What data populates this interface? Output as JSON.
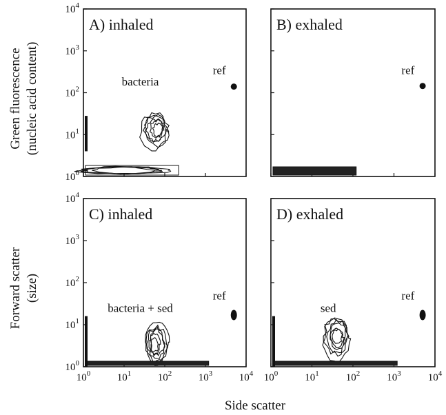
{
  "figure": {
    "ylabel_top": [
      "Green fluorescence",
      "(nucleic acid content)"
    ],
    "ylabel_bottom": [
      "Forward scatter",
      "(size)"
    ],
    "xlabel": "Side scatter"
  },
  "ticks": {
    "y": [
      {
        "base": "10",
        "exp": "0"
      },
      {
        "base": "10",
        "exp": "1"
      },
      {
        "base": "10",
        "exp": "2"
      },
      {
        "base": "10",
        "exp": "3"
      },
      {
        "base": "10",
        "exp": "4"
      }
    ],
    "x": [
      {
        "base": "10",
        "exp": "0"
      },
      {
        "base": "10",
        "exp": "1"
      },
      {
        "base": "10",
        "exp": "2"
      },
      {
        "base": "10",
        "exp": "3"
      },
      {
        "base": "10",
        "exp": "4"
      }
    ]
  },
  "chart_data": [
    {
      "type": "contour",
      "panel_label": "A) inhaled",
      "xscale": "log",
      "yscale": "log",
      "xlim": [
        1,
        10000
      ],
      "ylim": [
        1,
        10000
      ],
      "annotations": [
        {
          "text": "ref",
          "x": 2200,
          "y": 280
        },
        {
          "text": "bacteria",
          "x": 25,
          "y": 150
        }
      ],
      "populations": [
        {
          "name": "ref",
          "x": 5000,
          "y": 140
        },
        {
          "name": "bacteria",
          "x": 60,
          "y": 13
        },
        {
          "name": "noise",
          "x": 5,
          "y": 1.3
        },
        {
          "name": "vertical streak",
          "x": 1.1,
          "y": 12
        }
      ]
    },
    {
      "type": "contour",
      "panel_label": "B) exhaled",
      "xscale": "log",
      "yscale": "log",
      "xlim": [
        1,
        10000
      ],
      "ylim": [
        1,
        10000
      ],
      "annotations": [
        {
          "text": "ref",
          "x": 2200,
          "y": 280
        }
      ],
      "populations": [
        {
          "name": "ref",
          "x": 5000,
          "y": 145
        },
        {
          "name": "noise",
          "x": 15,
          "y": 1.4
        }
      ]
    },
    {
      "type": "contour",
      "panel_label": "C) inhaled",
      "xscale": "log",
      "yscale": "log",
      "xlim": [
        1,
        10000
      ],
      "ylim": [
        1,
        10000
      ],
      "annotations": [
        {
          "text": "ref",
          "x": 2200,
          "y": 40
        },
        {
          "text": "bacteria + sed",
          "x": 25,
          "y": 20
        }
      ],
      "populations": [
        {
          "name": "ref",
          "x": 5000,
          "y": 17
        },
        {
          "name": "bacteria + sed",
          "x": 60,
          "y": 3.5
        },
        {
          "name": "noise",
          "x": 30,
          "y": 1.15
        },
        {
          "name": "vertical streak",
          "x": 1.05,
          "y": 5
        }
      ]
    },
    {
      "type": "contour",
      "panel_label": "D) exhaled",
      "xscale": "log",
      "yscale": "log",
      "xlim": [
        1,
        10000
      ],
      "ylim": [
        1,
        10000
      ],
      "annotations": [
        {
          "text": "ref",
          "x": 2200,
          "y": 40
        },
        {
          "text": "sed",
          "x": 25,
          "y": 20
        }
      ],
      "populations": [
        {
          "name": "ref",
          "x": 5000,
          "y": 17
        },
        {
          "name": "sed",
          "x": 40,
          "y": 5
        },
        {
          "name": "noise",
          "x": 30,
          "y": 1.15
        },
        {
          "name": "vertical streak",
          "x": 1.05,
          "y": 5
        }
      ]
    }
  ]
}
